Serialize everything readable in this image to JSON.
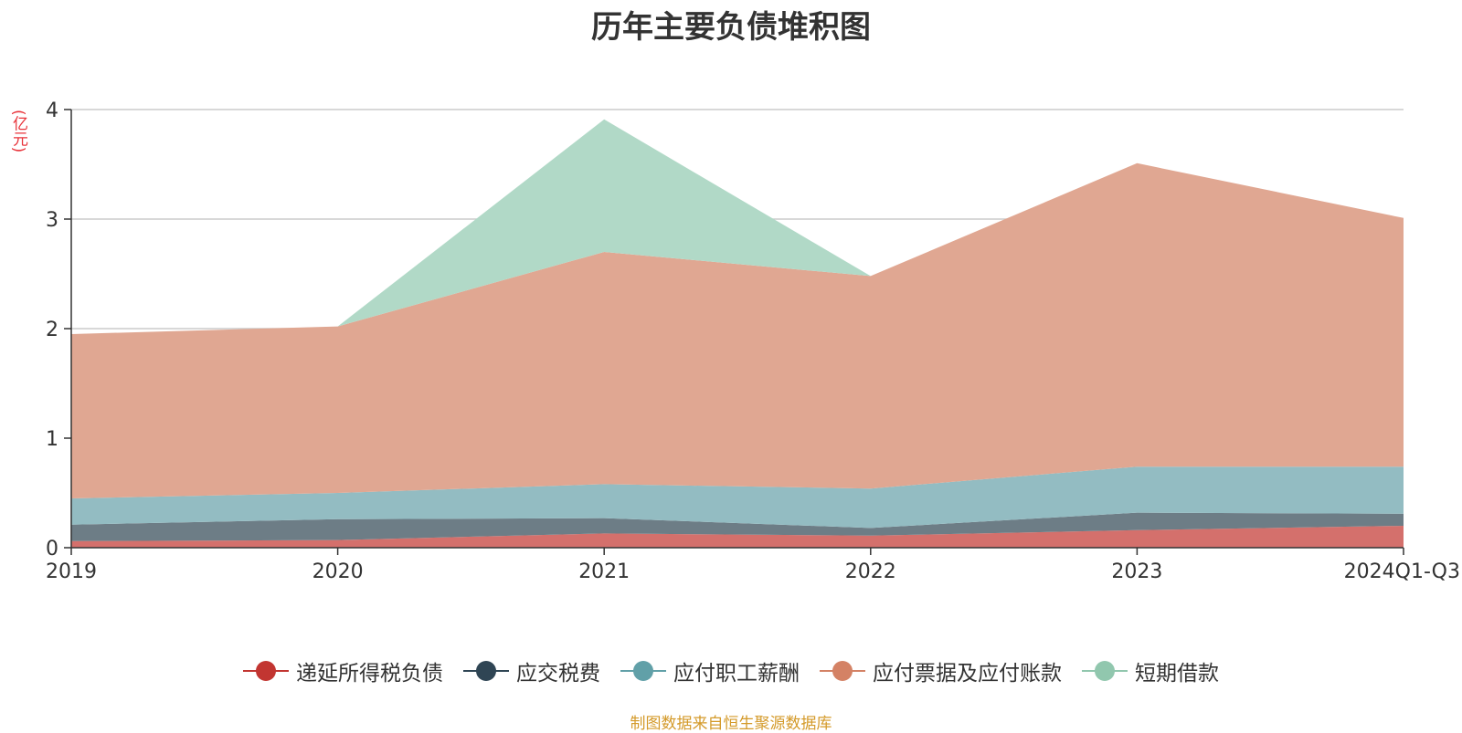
{
  "chart_data": {
    "type": "area",
    "stacked": true,
    "title": "历年主要负债堆积图",
    "ylabel": "(亿元)",
    "xlabel": "",
    "categories": [
      "2019",
      "2020",
      "2021",
      "2022",
      "2023",
      "2024Q1-Q3"
    ],
    "ylim": [
      0,
      4
    ],
    "yticks": [
      0,
      1,
      2,
      3,
      4
    ],
    "grid": true,
    "legend_position": "bottom",
    "series": [
      {
        "name": "递延所得税负债",
        "color": "#c23531",
        "fill": "#d4706c",
        "values": [
          0.06,
          0.07,
          0.13,
          0.11,
          0.16,
          0.2
        ]
      },
      {
        "name": "应交税费",
        "color": "#2f4554",
        "fill": "#6d7d86",
        "values": [
          0.15,
          0.19,
          0.14,
          0.07,
          0.16,
          0.11
        ]
      },
      {
        "name": "应付职工薪酬",
        "color": "#61a0a8",
        "fill": "#93bcc2",
        "values": [
          0.24,
          0.24,
          0.31,
          0.36,
          0.42,
          0.43
        ]
      },
      {
        "name": "应付票据及应付账款",
        "color": "#d48265",
        "fill": "#e0a792",
        "values": [
          1.5,
          1.52,
          2.12,
          1.94,
          2.77,
          2.27
        ]
      },
      {
        "name": "短期借款",
        "color": "#91c7ae",
        "fill": "#b1d9c7",
        "values": [
          0,
          0,
          1.21,
          0,
          0,
          0
        ]
      }
    ]
  },
  "source_note": "制图数据来自恒生聚源数据库"
}
